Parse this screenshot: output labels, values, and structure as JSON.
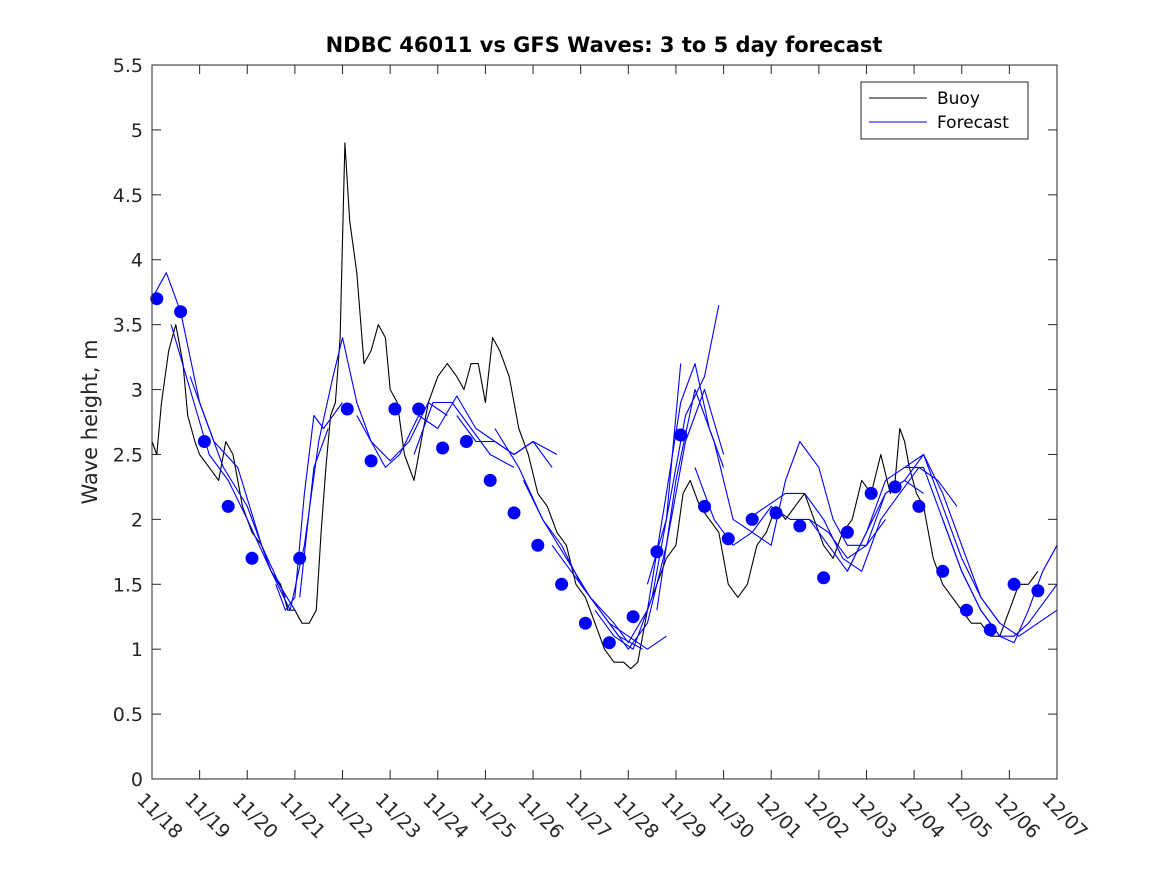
{
  "chart_data": {
    "type": "line",
    "title": "NDBC 46011 vs GFS Waves: 3 to 5 day forecast",
    "xlabel": "",
    "ylabel": "Wave height, m",
    "ylim": [
      0,
      5.5
    ],
    "yticks": [
      "0",
      "0.5",
      "1",
      "1.5",
      "2",
      "2.5",
      "3",
      "3.5",
      "4",
      "4.5",
      "5",
      "5.5"
    ],
    "xlim": [
      0,
      19
    ],
    "xtick_labels": [
      "11/18",
      "11/19",
      "11/20",
      "11/21",
      "11/22",
      "11/23",
      "11/24",
      "11/25",
      "11/26",
      "11/27",
      "11/28",
      "11/29",
      "11/30",
      "12/01",
      "12/02",
      "12/03",
      "12/04",
      "12/05",
      "12/06",
      "12/07"
    ],
    "legend": {
      "position": "top-right",
      "entries": [
        "Buoy",
        "Forecast"
      ]
    },
    "colors": {
      "buoy": "#000000",
      "forecast": "#0000ff",
      "markers": "#0000ff",
      "axes": "#262626"
    },
    "series": [
      {
        "name": "Buoy",
        "x": [
          0,
          0.1,
          0.2,
          0.35,
          0.5,
          0.65,
          0.75,
          0.9,
          1.0,
          1.2,
          1.4,
          1.55,
          1.7,
          1.9,
          2.1,
          2.3,
          2.5,
          2.7,
          2.85,
          3.0,
          3.15,
          3.3,
          3.45,
          3.55,
          3.65,
          3.75,
          3.85,
          3.95,
          4.05,
          4.15,
          4.3,
          4.45,
          4.6,
          4.75,
          4.9,
          5.0,
          5.15,
          5.3,
          5.5,
          5.65,
          5.8,
          6.0,
          6.2,
          6.4,
          6.55,
          6.7,
          6.85,
          7.0,
          7.15,
          7.3,
          7.5,
          7.7,
          7.9,
          8.1,
          8.3,
          8.5,
          8.7,
          8.9,
          9.1,
          9.3,
          9.5,
          9.7,
          9.9,
          10.05,
          10.2,
          10.4,
          10.6,
          10.8,
          11.0,
          11.15,
          11.3,
          11.5,
          11.7,
          11.9,
          12.1,
          12.3,
          12.5,
          12.7,
          12.9,
          13.1,
          13.3,
          13.5,
          13.7,
          13.9,
          14.1,
          14.3,
          14.5,
          14.7,
          14.9,
          15.1,
          15.3,
          15.5,
          15.6,
          15.7,
          15.8,
          15.9,
          16.05,
          16.2,
          16.4,
          16.6,
          16.8,
          17.0,
          17.2,
          17.4,
          17.6,
          17.8,
          18.0,
          18.2,
          18.4,
          18.6
        ],
        "values": [
          2.6,
          2.5,
          2.9,
          3.3,
          3.5,
          3.2,
          2.8,
          2.6,
          2.5,
          2.4,
          2.3,
          2.6,
          2.5,
          2.1,
          1.9,
          1.8,
          1.6,
          1.5,
          1.3,
          1.3,
          1.2,
          1.2,
          1.3,
          1.9,
          2.4,
          2.8,
          2.9,
          3.4,
          4.9,
          4.3,
          3.9,
          3.2,
          3.3,
          3.5,
          3.4,
          3.0,
          2.9,
          2.5,
          2.3,
          2.6,
          2.9,
          3.1,
          3.2,
          3.1,
          3.0,
          3.2,
          3.2,
          2.9,
          3.4,
          3.3,
          3.1,
          2.7,
          2.5,
          2.2,
          2.1,
          1.9,
          1.8,
          1.5,
          1.4,
          1.2,
          1.0,
          0.9,
          0.9,
          0.85,
          0.9,
          1.3,
          1.5,
          1.7,
          1.8,
          2.2,
          2.3,
          2.1,
          2.0,
          1.9,
          1.5,
          1.4,
          1.5,
          1.8,
          1.9,
          2.1,
          2.0,
          2.1,
          2.2,
          2.0,
          1.8,
          1.7,
          1.9,
          2.0,
          2.3,
          2.2,
          2.5,
          2.2,
          2.3,
          2.7,
          2.6,
          2.4,
          2.2,
          2.1,
          1.7,
          1.5,
          1.4,
          1.3,
          1.2,
          1.2,
          1.1,
          1.1,
          1.3,
          1.5,
          1.5,
          1.6
        ]
      },
      {
        "name": "Forecast",
        "x": [
          0,
          0.3,
          0.6,
          1.0,
          1.5,
          2.0,
          2.5,
          2.9
        ],
        "values": [
          3.7,
          3.9,
          3.6,
          2.9,
          2.4,
          2.1,
          1.6,
          1.3
        ]
      },
      {
        "name": "Forecast",
        "x": [
          0.4,
          0.8,
          1.2,
          1.6,
          2.0,
          2.5,
          3.0
        ],
        "values": [
          3.5,
          3.0,
          2.5,
          2.3,
          2.0,
          1.6,
          1.3
        ]
      },
      {
        "name": "Forecast",
        "x": [
          0.8,
          1.3,
          1.8,
          2.3,
          2.8
        ],
        "values": [
          3.1,
          2.6,
          2.4,
          1.8,
          1.4
        ]
      },
      {
        "name": "Forecast",
        "x": [
          2.6,
          2.8,
          3.0,
          3.2,
          3.4,
          3.6,
          3.8,
          4.0
        ],
        "values": [
          1.5,
          1.3,
          1.4,
          2.2,
          2.8,
          2.7,
          2.8,
          2.9
        ]
      },
      {
        "name": "Forecast",
        "x": [
          2.9,
          3.2,
          3.5,
          3.8,
          4.0,
          4.3,
          4.6,
          4.9,
          5.2,
          5.6,
          6.0
        ],
        "values": [
          1.3,
          1.8,
          2.6,
          3.1,
          3.4,
          2.9,
          2.6,
          2.4,
          2.5,
          2.8,
          2.7
        ]
      },
      {
        "name": "Forecast",
        "x": [
          3.1,
          3.4,
          3.7
        ],
        "values": [
          1.4,
          2.4,
          2.7
        ]
      },
      {
        "name": "Forecast",
        "x": [
          4.3,
          4.6,
          5.0,
          5.4,
          5.8,
          6.2
        ],
        "values": [
          2.8,
          2.6,
          2.45,
          2.6,
          2.9,
          2.8
        ]
      },
      {
        "name": "Forecast",
        "x": [
          5.5,
          5.9,
          6.3,
          6.7,
          7.1,
          7.6
        ],
        "values": [
          2.5,
          2.9,
          2.9,
          2.7,
          2.5,
          2.4
        ]
      },
      {
        "name": "Forecast",
        "x": [
          6.0,
          6.4,
          6.8,
          7.2,
          7.6,
          8.0,
          8.5
        ],
        "values": [
          2.7,
          2.95,
          2.7,
          2.6,
          2.5,
          2.6,
          2.5
        ]
      },
      {
        "name": "Forecast",
        "x": [
          6.4,
          6.8,
          7.2,
          7.6,
          8.0,
          8.4
        ],
        "values": [
          2.8,
          2.6,
          2.6,
          2.5,
          2.6,
          2.4
        ]
      },
      {
        "name": "Forecast",
        "x": [
          7.2,
          7.7,
          8.2,
          8.7,
          9.2,
          9.7,
          10.0
        ],
        "values": [
          2.7,
          2.4,
          2.0,
          1.7,
          1.4,
          1.2,
          1.05
        ]
      },
      {
        "name": "Forecast",
        "x": [
          7.8,
          8.2,
          8.6,
          9.0,
          9.4,
          9.8,
          10.3
        ],
        "values": [
          2.3,
          2.0,
          1.8,
          1.5,
          1.3,
          1.1,
          1.0
        ]
      },
      {
        "name": "Forecast",
        "x": [
          8.4,
          8.8,
          9.2,
          9.6,
          10.0,
          10.4,
          10.8
        ],
        "values": [
          1.8,
          1.6,
          1.4,
          1.2,
          1.1,
          1.0,
          1.1
        ]
      },
      {
        "name": "Forecast",
        "x": [
          9.3,
          9.7,
          10.1,
          10.5,
          10.8,
          11.1
        ],
        "values": [
          1.3,
          1.1,
          1.0,
          1.4,
          2.0,
          3.2
        ]
      },
      {
        "name": "Forecast",
        "x": [
          9.6,
          10.0,
          10.4,
          10.8,
          11.2,
          11.6,
          12.0
        ],
        "values": [
          1.2,
          1.0,
          1.2,
          1.8,
          2.6,
          3.0,
          2.5
        ]
      },
      {
        "name": "Forecast",
        "x": [
          10.0,
          10.4,
          10.8,
          11.1,
          11.4,
          11.7,
          12.0
        ],
        "values": [
          1.05,
          1.3,
          2.2,
          2.9,
          3.2,
          2.7,
          2.4
        ]
      },
      {
        "name": "Forecast",
        "x": [
          10.4,
          10.8,
          11.2,
          11.6,
          11.9
        ],
        "values": [
          1.5,
          2.0,
          2.8,
          3.1,
          3.65
        ]
      },
      {
        "name": "Forecast",
        "x": [
          10.6,
          11.0,
          11.4,
          11.8,
          12.2,
          12.6,
          13.0,
          13.3,
          13.6,
          14.0,
          14.3,
          14.6,
          15.0,
          15.4
        ],
        "values": [
          1.3,
          2.3,
          3.0,
          2.6,
          2.0,
          1.9,
          1.8,
          2.3,
          2.6,
          2.4,
          2.0,
          1.8,
          1.8,
          2.0
        ]
      },
      {
        "name": "Forecast",
        "x": [
          11.4,
          11.8,
          12.2,
          12.6,
          13.0,
          13.4,
          13.8,
          14.2,
          14.6,
          15.0,
          15.4,
          15.8,
          16.2
        ],
        "values": [
          2.4,
          2.0,
          1.8,
          1.9,
          2.1,
          2.0,
          2.0,
          1.9,
          1.7,
          1.8,
          2.2,
          2.3,
          2.2
        ]
      },
      {
        "name": "Forecast",
        "x": [
          12.5,
          12.9,
          13.3,
          13.7,
          14.1,
          14.5,
          14.9,
          15.3,
          15.7,
          16.1,
          16.5,
          16.9
        ],
        "values": [
          2.0,
          2.1,
          2.2,
          2.2,
          2.0,
          1.7,
          1.6,
          2.0,
          2.2,
          2.4,
          2.3,
          2.1
        ]
      },
      {
        "name": "Forecast",
        "x": [
          13.8,
          14.2,
          14.6,
          15.0,
          15.4,
          15.8,
          16.2,
          16.6,
          17.0,
          17.4,
          17.8
        ],
        "values": [
          2.0,
          1.8,
          1.6,
          1.9,
          2.3,
          2.4,
          2.5,
          2.1,
          1.7,
          1.4,
          1.2
        ]
      },
      {
        "name": "Forecast",
        "x": [
          14.6,
          15.0,
          15.4,
          15.8,
          16.2,
          16.6,
          17.0,
          17.4,
          17.8,
          18.2,
          18.6,
          19.0
        ],
        "values": [
          1.6,
          1.9,
          2.2,
          2.3,
          2.5,
          2.2,
          1.8,
          1.4,
          1.2,
          1.1,
          1.2,
          1.3
        ]
      },
      {
        "name": "Forecast",
        "x": [
          15.8,
          16.2,
          16.6,
          17.0,
          17.4,
          17.8,
          18.1,
          18.4,
          18.8,
          19.0
        ],
        "values": [
          2.4,
          2.4,
          2.0,
          1.6,
          1.3,
          1.1,
          1.1,
          1.2,
          1.4,
          1.5
        ]
      },
      {
        "name": "Forecast",
        "x": [
          16.6,
          17.0,
          17.4,
          17.8,
          18.1,
          18.4,
          18.7,
          19.0
        ],
        "values": [
          2.0,
          1.6,
          1.3,
          1.1,
          1.05,
          1.3,
          1.6,
          1.8
        ]
      }
    ],
    "markers": {
      "name": "Forecast points",
      "x": [
        0.1,
        0.6,
        1.1,
        1.6,
        2.1,
        3.1,
        4.1,
        4.6,
        5.1,
        5.6,
        6.1,
        6.6,
        7.1,
        7.6,
        8.1,
        8.6,
        9.1,
        9.6,
        10.1,
        10.6,
        11.1,
        11.6,
        12.1,
        12.6,
        13.1,
        13.6,
        14.1,
        14.6,
        15.1,
        15.6,
        16.1,
        16.6,
        17.1,
        17.6,
        18.1,
        18.6
      ],
      "values": [
        3.7,
        3.6,
        2.6,
        2.1,
        1.7,
        1.7,
        2.85,
        2.45,
        2.85,
        2.85,
        2.55,
        2.6,
        2.3,
        2.05,
        1.8,
        1.5,
        1.2,
        1.05,
        1.25,
        1.75,
        2.65,
        2.1,
        1.85,
        2.0,
        2.05,
        1.95,
        1.55,
        1.9,
        2.2,
        2.25,
        2.1,
        1.6,
        1.3,
        1.15,
        1.5,
        1.45
      ]
    }
  }
}
